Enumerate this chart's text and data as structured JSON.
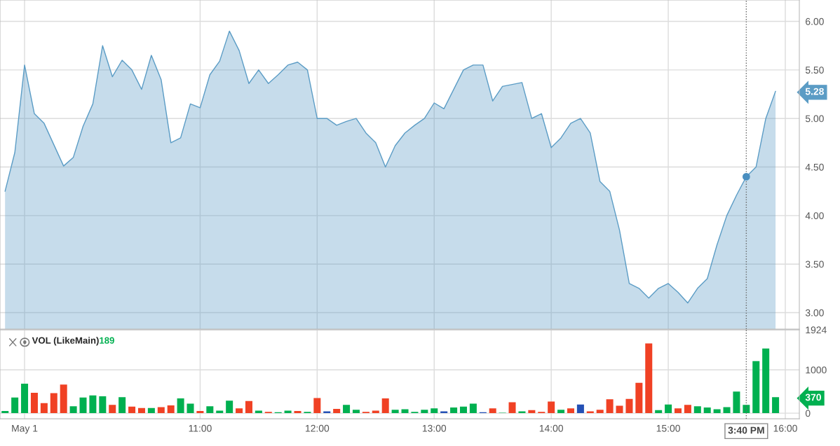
{
  "chart_data": [
    {
      "type": "area",
      "x": [
        9.3333,
        9.4167,
        9.5,
        9.5833,
        9.6667,
        9.75,
        9.8333,
        9.9167,
        10,
        10.0833,
        10.1667,
        10.25,
        10.3333,
        10.4167,
        10.5,
        10.5833,
        10.6667,
        10.75,
        10.8333,
        10.9167,
        11,
        11.0833,
        11.1667,
        11.25,
        11.3333,
        11.4167,
        11.5,
        11.5833,
        11.6667,
        11.75,
        11.8333,
        11.9167,
        12,
        12.0833,
        12.1667,
        12.25,
        12.3333,
        12.4167,
        12.5,
        12.5833,
        12.6667,
        12.75,
        12.8333,
        12.9167,
        13,
        13.0833,
        13.1667,
        13.25,
        13.3333,
        13.4167,
        13.5,
        13.5833,
        13.6667,
        13.75,
        13.8333,
        13.9167,
        14,
        14.0833,
        14.1667,
        14.25,
        14.3333,
        14.4167,
        14.5,
        14.5833,
        14.6667,
        14.75,
        14.8333,
        14.9167,
        15,
        15.0833,
        15.1667,
        15.25,
        15.3333,
        15.4167,
        15.5,
        15.5833,
        15.6667,
        15.75,
        15.8333,
        15.9167
      ],
      "series": [
        {
          "type": "area",
          "color": "#5b9cc5",
          "values": [
            4.25,
            4.65,
            5.55,
            5.05,
            4.95,
            4.73,
            4.51,
            4.6,
            4.92,
            5.15,
            5.75,
            5.43,
            5.6,
            5.5,
            5.3,
            5.65,
            5.4,
            4.75,
            4.8,
            5.15,
            5.11,
            5.45,
            5.59,
            5.9,
            5.7,
            5.36,
            5.5,
            5.36,
            5.45,
            5.55,
            5.58,
            5.5,
            5.0,
            5.0,
            4.93,
            4.97,
            5.0,
            4.85,
            4.75,
            4.5,
            4.72,
            4.85,
            4.93,
            5.0,
            5.16,
            5.1,
            5.3,
            5.5,
            5.55,
            5.55,
            5.18,
            5.33,
            5.35,
            5.37,
            5.0,
            5.05,
            4.7,
            4.8,
            4.95,
            5.0,
            4.85,
            4.35,
            4.25,
            3.85,
            3.3,
            3.25,
            3.15,
            3.25,
            3.3,
            3.21,
            3.1,
            3.25,
            3.35,
            3.7,
            4.0,
            4.21,
            4.4,
            4.5,
            5.0,
            5.28
          ]
        },
        {
          "type": "scatter",
          "color": "#4a8fc0",
          "x": [
            15.6667
          ],
          "values": [
            4.4
          ]
        }
      ],
      "xlim": [
        9.29,
        16.12
      ],
      "xticks": [
        {
          "value": 9.5,
          "label": null
        },
        {
          "value": 11,
          "label": null
        },
        {
          "value": 12,
          "label": null
        },
        {
          "value": 13,
          "label": null
        },
        {
          "value": 14,
          "label": null
        },
        {
          "value": 15,
          "label": null
        },
        {
          "value": 16,
          "label": null
        }
      ],
      "ylim": [
        2.83,
        6.22
      ],
      "yticks": [
        {
          "value": 3,
          "label": "3.00"
        },
        {
          "value": 3.5,
          "label": "3.50"
        },
        {
          "value": 4,
          "label": "4.00"
        },
        {
          "value": 4.5,
          "label": "4.50"
        },
        {
          "value": 5,
          "label": "5.00"
        },
        {
          "value": 5.28,
          "label": "5.28"
        },
        {
          "value": 5.5,
          "label": "5.50"
        },
        {
          "value": 6,
          "label": "6.00"
        }
      ],
      "ref_lines": [
        {
          "axis": "x",
          "value": 15.6667
        }
      ],
      "grid": true,
      "tick_labels": "y"
    },
    {
      "type": "bar",
      "title": "VOL (LikeMain)",
      "subtitle": "189",
      "x": [
        9.3333,
        9.4167,
        9.5,
        9.5833,
        9.6667,
        9.75,
        9.8333,
        9.9167,
        10,
        10.0833,
        10.1667,
        10.25,
        10.3333,
        10.4167,
        10.5,
        10.5833,
        10.6667,
        10.75,
        10.8333,
        10.9167,
        11,
        11.0833,
        11.1667,
        11.25,
        11.3333,
        11.4167,
        11.5,
        11.5833,
        11.6667,
        11.75,
        11.8333,
        11.9167,
        12,
        12.0833,
        12.1667,
        12.25,
        12.3333,
        12.4167,
        12.5,
        12.5833,
        12.6667,
        12.75,
        12.8333,
        12.9167,
        13,
        13.0833,
        13.1667,
        13.25,
        13.3333,
        13.4167,
        13.5,
        13.5833,
        13.6667,
        13.75,
        13.8333,
        13.9167,
        14,
        14.0833,
        14.1667,
        14.25,
        14.3333,
        14.4167,
        14.5,
        14.5833,
        14.6667,
        14.75,
        14.8333,
        14.9167,
        15,
        15.0833,
        15.1667,
        15.25,
        15.3333,
        15.4167,
        15.5,
        15.5833,
        15.6667,
        15.75,
        15.8333,
        15.9167
      ],
      "values": [
        50,
        360,
        680,
        470,
        230,
        460,
        660,
        160,
        360,
        410,
        390,
        190,
        370,
        150,
        120,
        120,
        140,
        180,
        340,
        220,
        50,
        160,
        60,
        290,
        110,
        280,
        60,
        30,
        20,
        60,
        50,
        30,
        350,
        40,
        100,
        190,
        80,
        30,
        60,
        340,
        80,
        90,
        30,
        80,
        110,
        40,
        130,
        150,
        220,
        20,
        110,
        10,
        250,
        40,
        70,
        30,
        270,
        80,
        110,
        200,
        40,
        80,
        320,
        170,
        330,
        700,
        1610,
        70,
        200,
        110,
        190,
        160,
        130,
        90,
        140,
        500,
        190,
        1200,
        1490,
        370
      ],
      "colors": [
        "#00b050",
        "#00b050",
        "#00b050",
        "#f04124",
        "#f04124",
        "#f04124",
        "#f04124",
        "#00b050",
        "#00b050",
        "#00b050",
        "#00b050",
        "#f04124",
        "#00b050",
        "#f04124",
        "#f04124",
        "#00b050",
        "#f04124",
        "#f04124",
        "#00b050",
        "#00b050",
        "#f04124",
        "#00b050",
        "#00b050",
        "#00b050",
        "#f04124",
        "#f04124",
        "#00b050",
        "#f04124",
        "#00b050",
        "#00b050",
        "#f04124",
        "#00b050",
        "#f04124",
        "#2450b5",
        "#f04124",
        "#00b050",
        "#00b050",
        "#f04124",
        "#f04124",
        "#f04124",
        "#00b050",
        "#00b050",
        "#00b050",
        "#00b050",
        "#00b050",
        "#2450b5",
        "#00b050",
        "#00b050",
        "#00b050",
        "#2450b5",
        "#f04124",
        "#00b050",
        "#f04124",
        "#00b050",
        "#f04124",
        "#f04124",
        "#f04124",
        "#00b050",
        "#f04124",
        "#2450b5",
        "#f04124",
        "#f04124",
        "#f04124",
        "#f04124",
        "#f04124",
        "#f04124",
        "#f04124",
        "#00b050",
        "#00b050",
        "#f04124",
        "#f04124",
        "#00b050",
        "#00b050",
        "#00b050",
        "#00b050",
        "#00b050",
        "#00b050",
        "#00b050",
        "#00b050",
        "#00b050"
      ],
      "xlim": [
        9.29,
        16.12
      ],
      "xticks": [
        {
          "value": 9.5,
          "label": "May 1"
        },
        {
          "value": 11,
          "label": "11:00"
        },
        {
          "value": 12,
          "label": "12:00"
        },
        {
          "value": 13,
          "label": "13:00"
        },
        {
          "value": 14,
          "label": "14:00"
        },
        {
          "value": 15,
          "label": "15:00"
        },
        {
          "value": 16,
          "label": "16:00"
        }
      ],
      "ylim": [
        -130,
        1924
      ],
      "yticks": [
        0,
        370,
        1000,
        1924
      ],
      "ref_lines": [
        {
          "axis": "x",
          "value": 15.6667
        }
      ],
      "annotations": [
        "3:40 PM"
      ],
      "grid": true
    }
  ]
}
